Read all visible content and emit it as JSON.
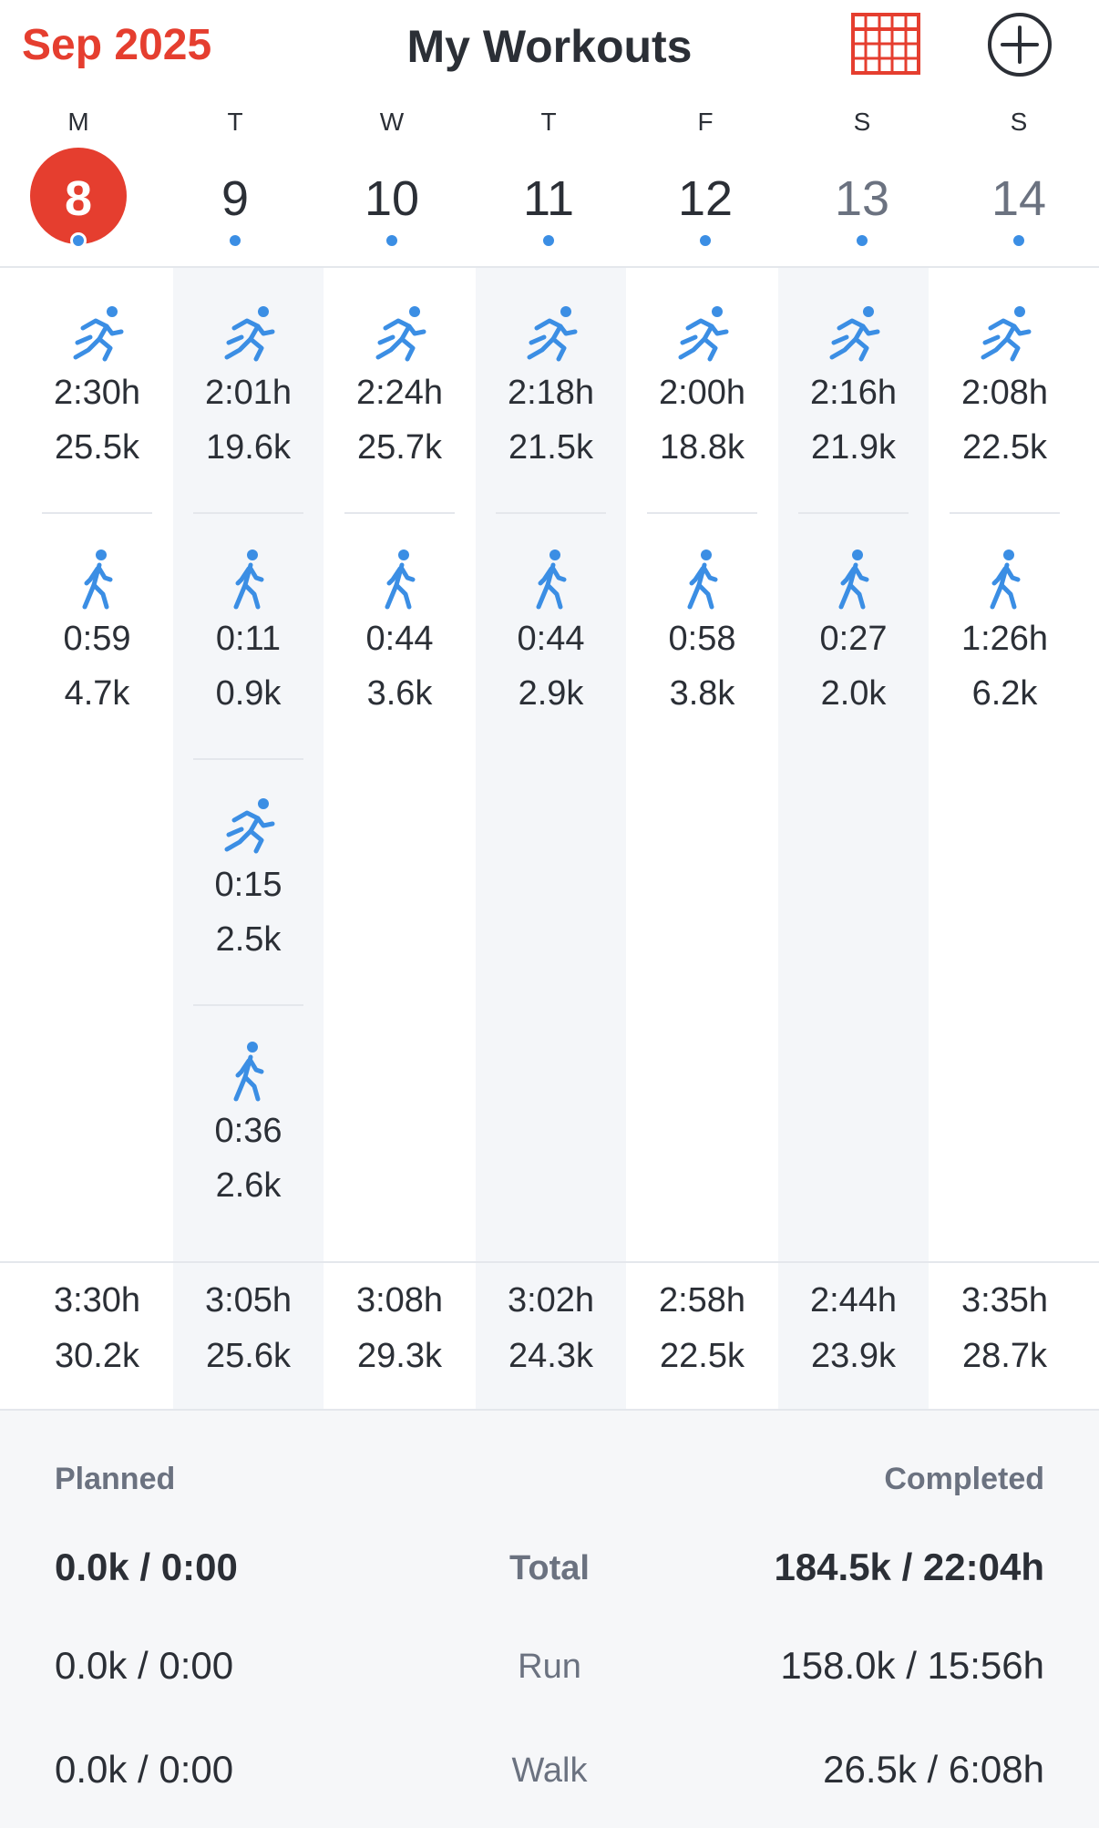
{
  "header": {
    "month": "Sep 2025",
    "title": "My Workouts",
    "calendar_icon": "calendar-grid-icon",
    "add_icon": "plus-circle-icon",
    "accent": "#e53e2f"
  },
  "week": [
    {
      "dow": "M",
      "num": "8",
      "today": true
    },
    {
      "dow": "T",
      "num": "9"
    },
    {
      "dow": "W",
      "num": "10"
    },
    {
      "dow": "T",
      "num": "11"
    },
    {
      "dow": "F",
      "num": "12"
    },
    {
      "dow": "S",
      "num": "13",
      "weekend": true
    },
    {
      "dow": "S",
      "num": "14",
      "weekend": true
    }
  ],
  "days": [
    {
      "workouts": [
        {
          "type": "run",
          "duration": "2:30h",
          "distance": "25.5k"
        },
        {
          "type": "walk",
          "duration": "0:59",
          "distance": "4.7k"
        }
      ],
      "total": {
        "duration": "3:30h",
        "distance": "30.2k"
      }
    },
    {
      "workouts": [
        {
          "type": "run",
          "duration": "2:01h",
          "distance": "19.6k"
        },
        {
          "type": "walk",
          "duration": "0:11",
          "distance": "0.9k"
        },
        {
          "type": "run",
          "duration": "0:15",
          "distance": "2.5k"
        },
        {
          "type": "walk",
          "duration": "0:36",
          "distance": "2.6k"
        }
      ],
      "total": {
        "duration": "3:05h",
        "distance": "25.6k"
      }
    },
    {
      "workouts": [
        {
          "type": "run",
          "duration": "2:24h",
          "distance": "25.7k"
        },
        {
          "type": "walk",
          "duration": "0:44",
          "distance": "3.6k"
        }
      ],
      "total": {
        "duration": "3:08h",
        "distance": "29.3k"
      }
    },
    {
      "workouts": [
        {
          "type": "run",
          "duration": "2:18h",
          "distance": "21.5k"
        },
        {
          "type": "walk",
          "duration": "0:44",
          "distance": "2.9k"
        }
      ],
      "total": {
        "duration": "3:02h",
        "distance": "24.3k"
      }
    },
    {
      "workouts": [
        {
          "type": "run",
          "duration": "2:00h",
          "distance": "18.8k"
        },
        {
          "type": "walk",
          "duration": "0:58",
          "distance": "3.8k"
        }
      ],
      "total": {
        "duration": "2:58h",
        "distance": "22.5k"
      }
    },
    {
      "workouts": [
        {
          "type": "run",
          "duration": "2:16h",
          "distance": "21.9k"
        },
        {
          "type": "walk",
          "duration": "0:27",
          "distance": "2.0k"
        }
      ],
      "total": {
        "duration": "2:44h",
        "distance": "23.9k"
      }
    },
    {
      "workouts": [
        {
          "type": "run",
          "duration": "2:08h",
          "distance": "22.5k"
        },
        {
          "type": "walk",
          "duration": "1:26h",
          "distance": "6.2k"
        }
      ],
      "total": {
        "duration": "3:35h",
        "distance": "28.7k"
      }
    }
  ],
  "summary": {
    "planned_label": "Planned",
    "completed_label": "Completed",
    "rows": [
      {
        "label": "Total",
        "planned": "0.0k / 0:00",
        "completed": "184.5k / 22:04h"
      },
      {
        "label": "Run",
        "planned": "0.0k / 0:00",
        "completed": "158.0k / 15:56h"
      },
      {
        "label": "Walk",
        "planned": "0.0k / 0:00",
        "completed": "26.5k / 6:08h"
      }
    ]
  },
  "icons": {
    "run": "running-icon",
    "walk": "walking-icon"
  },
  "colors": {
    "icon": "#3b8ee4",
    "today": "#e53e2f"
  }
}
